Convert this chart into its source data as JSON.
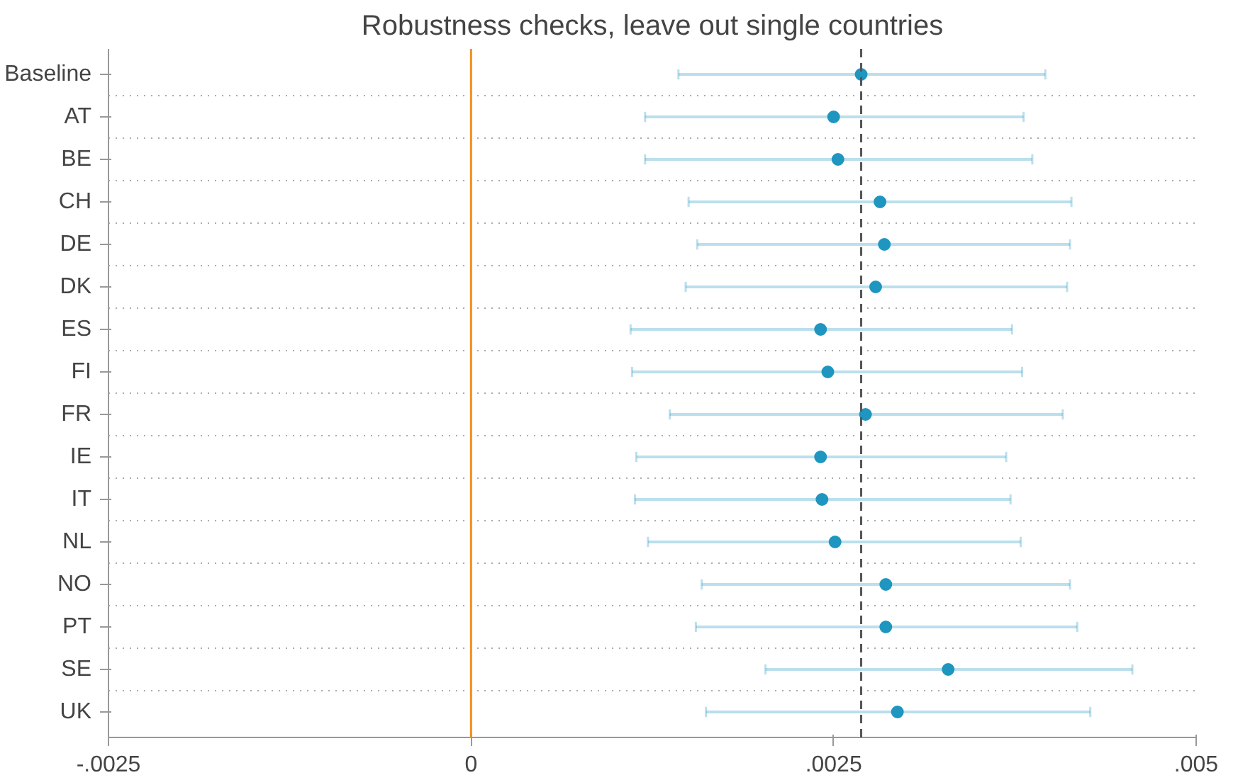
{
  "chart_data": {
    "type": "scatter",
    "orientation": "horizontal",
    "title": "Robustness checks, leave out single countries",
    "categories": [
      "Baseline",
      "AT",
      "BE",
      "CH",
      "DE",
      "DK",
      "ES",
      "FI",
      "FR",
      "IE",
      "IT",
      "NL",
      "NO",
      "PT",
      "SE",
      "UK"
    ],
    "series": [
      {
        "color": "#1f96c0",
        "values": [
          0.00269,
          0.0025,
          0.00253,
          0.00282,
          0.00285,
          0.00279,
          0.00241,
          0.00246,
          0.00272,
          0.00241,
          0.00242,
          0.00251,
          0.00286,
          0.00286,
          0.00329,
          0.00294
        ],
        "errors": [
          [
            0.00143,
            0.00396
          ],
          [
            0.0012,
            0.00381
          ],
          [
            0.0012,
            0.00387
          ],
          [
            0.0015,
            0.00414
          ],
          [
            0.00156,
            0.00413
          ],
          [
            0.00148,
            0.00411
          ],
          [
            0.0011,
            0.00373
          ],
          [
            0.00111,
            0.0038
          ],
          [
            0.00137,
            0.00408
          ],
          [
            0.00114,
            0.00369
          ],
          [
            0.00113,
            0.00372
          ],
          [
            0.00122,
            0.00379
          ],
          [
            0.00159,
            0.00413
          ],
          [
            0.00155,
            0.00418
          ],
          [
            0.00203,
            0.00456
          ],
          [
            0.00162,
            0.00427
          ]
        ]
      }
    ],
    "xlim": [
      -0.0025,
      0.005
    ],
    "xticks": [
      {
        "value": -0.0025,
        "label": "-.0025"
      },
      0,
      {
        "value": 0.0025,
        "label": ".0025"
      },
      {
        "value": 0.005,
        "label": ".005"
      }
    ],
    "ref_lines": [
      {
        "axis": "x",
        "value": 0,
        "color": "#f28e1c",
        "line_style": "solid"
      },
      {
        "axis": "x",
        "value": 0.00269,
        "color": "#555555",
        "line_style": "dashed"
      }
    ],
    "grid": "y",
    "marker": "circle"
  }
}
